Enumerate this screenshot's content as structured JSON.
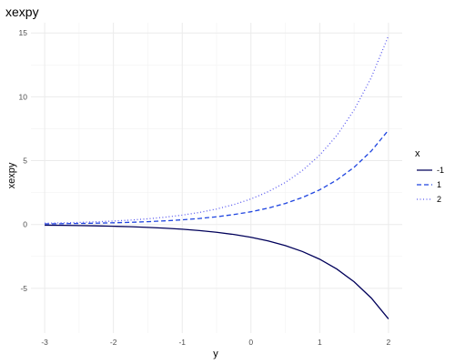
{
  "chart_data": {
    "type": "line",
    "title": "xexpy",
    "xlabel": "y",
    "ylabel": "xexpy",
    "xlim": [
      -3.2,
      2.2
    ],
    "ylim": [
      -8.5,
      15.8
    ],
    "x_ticks": [
      -3,
      -2,
      -1,
      0,
      1,
      2
    ],
    "x_tick_labels": [
      "-3",
      "-2",
      "-1",
      "0",
      "1",
      "2"
    ],
    "y_ticks": [
      -5,
      0,
      5,
      10,
      15
    ],
    "y_tick_labels": [
      "-5",
      "0",
      "5",
      "10",
      "15"
    ],
    "grid": true,
    "legend": {
      "title": "x",
      "position": "right"
    },
    "x": [
      -3,
      -2.75,
      -2.5,
      -2.25,
      -2,
      -1.75,
      -1.5,
      -1.25,
      -1,
      -0.75,
      -0.5,
      -0.25,
      0,
      0.25,
      0.5,
      0.75,
      1,
      1.25,
      1.5,
      1.75,
      2
    ],
    "series": [
      {
        "name": "-1",
        "color": "#00005a",
        "dash": "solid",
        "values": [
          -0.05,
          -0.064,
          -0.082,
          -0.105,
          -0.135,
          -0.174,
          -0.223,
          -0.287,
          -0.368,
          -0.472,
          -0.607,
          -0.779,
          -1.0,
          -1.284,
          -1.649,
          -2.117,
          -2.718,
          -3.49,
          -4.482,
          -5.755,
          -7.389
        ]
      },
      {
        "name": "1",
        "color": "#1f45e0",
        "dash": "dashed",
        "values": [
          0.05,
          0.064,
          0.082,
          0.105,
          0.135,
          0.174,
          0.223,
          0.287,
          0.368,
          0.472,
          0.607,
          0.779,
          1.0,
          1.284,
          1.649,
          2.117,
          2.718,
          3.49,
          4.482,
          5.755,
          7.389
        ]
      },
      {
        "name": "2",
        "color": "#5a5af0",
        "dash": "dotted",
        "values": [
          0.1,
          0.128,
          0.164,
          0.211,
          0.271,
          0.348,
          0.446,
          0.573,
          0.736,
          0.945,
          1.213,
          1.558,
          2.0,
          2.568,
          3.297,
          4.234,
          5.437,
          6.981,
          8.963,
          11.509,
          14.778
        ]
      }
    ]
  }
}
